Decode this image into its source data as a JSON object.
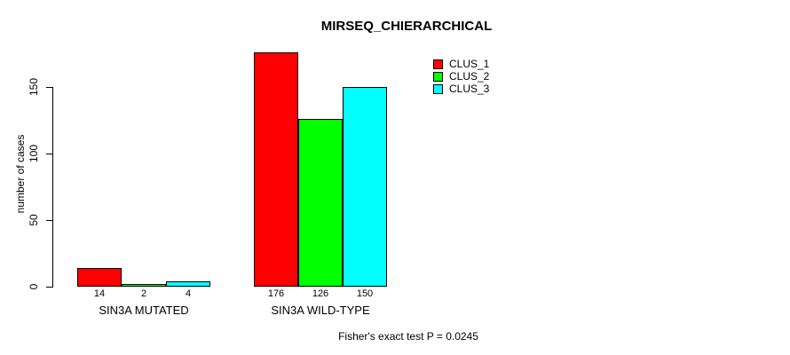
{
  "page": {
    "background_color": "#ffffff",
    "text_color": "#000000"
  },
  "chart_data": {
    "type": "bar",
    "title": "MIRSEQ_CHIERARCHICAL",
    "xlabel": "",
    "ylabel": "number of cases",
    "categories": [
      "SIN3A MUTATED",
      "SIN3A WILD-TYPE"
    ],
    "series": [
      {
        "name": "CLUS_1",
        "color": "#ff0000",
        "values": [
          14,
          176
        ]
      },
      {
        "name": "CLUS_2",
        "color": "#00ff00",
        "values": [
          2,
          126
        ]
      },
      {
        "name": "CLUS_3",
        "color": "#00ffff",
        "values": [
          4,
          150
        ]
      }
    ],
    "bar_value_labels": [
      [
        "14",
        "2",
        "4"
      ],
      [
        "176",
        "126",
        "150"
      ]
    ],
    "yticks": [
      0,
      50,
      100,
      150
    ],
    "ylim": [
      0,
      183
    ],
    "grid": false,
    "legend": {
      "position": "top-right",
      "entries": [
        "CLUS_1",
        "CLUS_2",
        "CLUS_3"
      ]
    },
    "annotation": "Fisher's exact test P = 0.0245"
  }
}
